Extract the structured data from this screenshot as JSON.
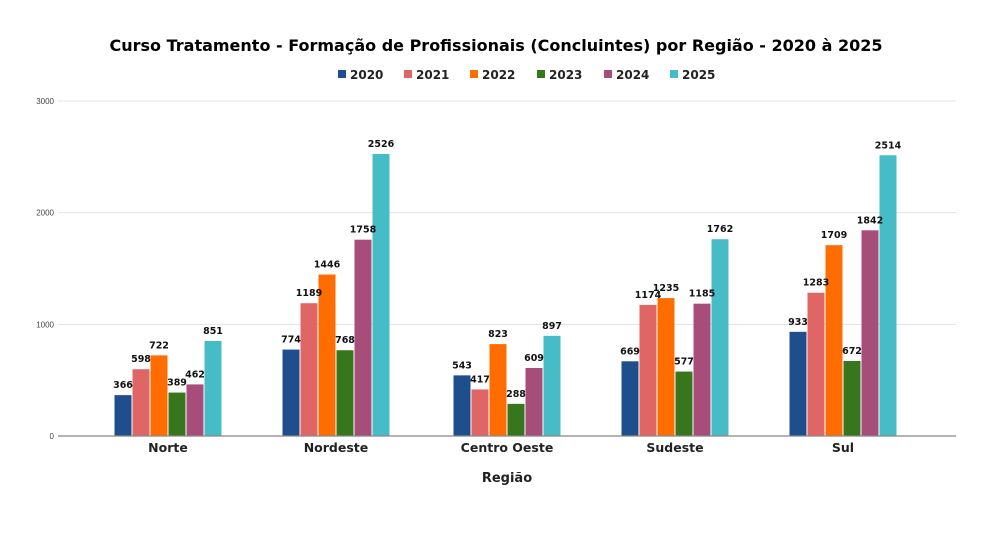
{
  "chart_data": {
    "type": "bar",
    "title": "Curso Tratamento - Formação de Profissionais (Concluintes) por Região - 2020 à 2025",
    "xlabel": "Região",
    "ylabel": "",
    "ylim": [
      0,
      3000
    ],
    "yticks": [
      0,
      1000,
      2000,
      3000
    ],
    "grid": true,
    "legend_position": "top",
    "categories": [
      "Norte",
      "Nordeste",
      "Centro Oeste",
      "Sudeste",
      "Sul"
    ],
    "series": [
      {
        "name": "2020",
        "color": "#1f4e8c",
        "values": [
          366,
          774,
          543,
          669,
          933
        ]
      },
      {
        "name": "2021",
        "color": "#e06666",
        "values": [
          598,
          1189,
          417,
          1174,
          1283
        ]
      },
      {
        "name": "2022",
        "color": "#ff6d01",
        "values": [
          722,
          1446,
          823,
          1235,
          1709
        ]
      },
      {
        "name": "2023",
        "color": "#38761d",
        "values": [
          389,
          768,
          288,
          577,
          672
        ]
      },
      {
        "name": "2024",
        "color": "#a64d79",
        "values": [
          462,
          1758,
          609,
          1185,
          1842
        ]
      },
      {
        "name": "2025",
        "color": "#46bdc6",
        "values": [
          851,
          2526,
          897,
          1762,
          2514
        ]
      }
    ]
  }
}
